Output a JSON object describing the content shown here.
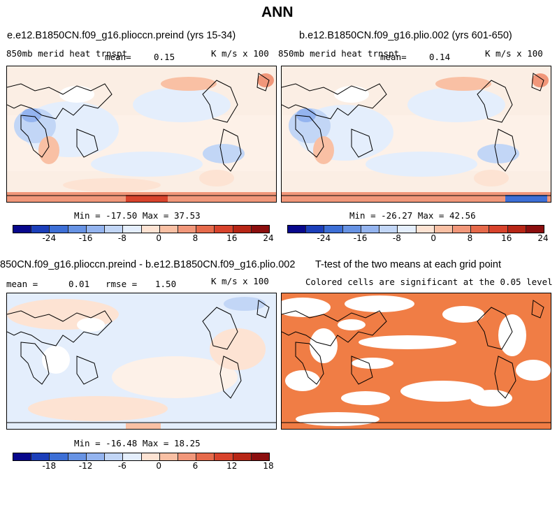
{
  "main_title": "ANN",
  "colors": {
    "scale": [
      "#08088c",
      "#1c3fba",
      "#3d6fd6",
      "#6793e4",
      "#94b4ef",
      "#c2d6f6",
      "#e4eefc",
      "#fde3d3",
      "#f9c0a4",
      "#f1977a",
      "#e66a4b",
      "#d8432c",
      "#b72616",
      "#8b0e0e"
    ],
    "signif": "#f07d45",
    "land": "#000000"
  },
  "panels": {
    "p1": {
      "title": "e.e12.B1850CN.f09_g16.plioccn.preind (yrs 15-34)",
      "variable": "850mb merid heat trnspt",
      "mean_label": "mean=",
      "mean": "0.15",
      "units": "K m/s x 100",
      "minmax": "Min = -17.50 Max = 37.53",
      "ticks": [
        "-24",
        "-16",
        "-8",
        "0",
        "8",
        "16",
        "24"
      ]
    },
    "p2": {
      "title": "b.e12.B1850CN.f09_g16.plio.002 (yrs 601-650)",
      "variable": "850mb merid heat trnspt",
      "mean_label": "mean=",
      "mean": "0.14",
      "units": "K m/s x 100",
      "minmax": "Min = -26.27 Max = 42.56",
      "ticks": [
        "-24",
        "-16",
        "-8",
        "0",
        "8",
        "16",
        "24"
      ]
    },
    "p3": {
      "title": "850CN.f09_g16.plioccn.preind - b.e12.B1850CN.f09_g16.plio.002",
      "mean_label": "mean =",
      "mean": "0.01",
      "rmse_label": "rmse =",
      "rmse": "1.50",
      "units": "K m/s x 100",
      "minmax": "Min = -16.48 Max = 18.25",
      "ticks": [
        "-18",
        "-12",
        "-6",
        "0",
        "6",
        "12",
        "18"
      ]
    },
    "p4": {
      "title": "T-test of the two means at each grid point",
      "subtitle": "Colored cells are significant at the 0.05 level"
    }
  }
}
